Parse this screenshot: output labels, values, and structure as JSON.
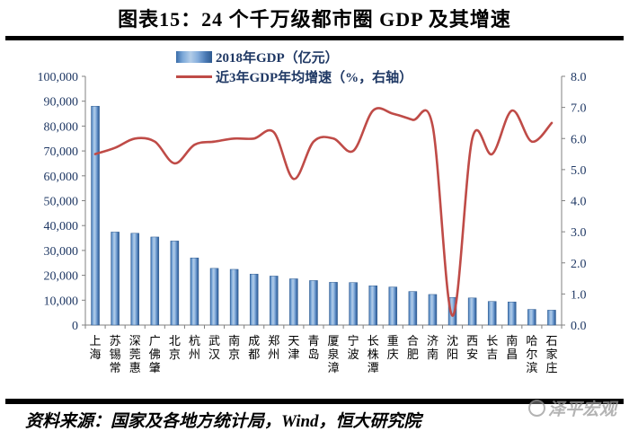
{
  "title": "图表15：24 个千万级都市圈 GDP 及其增速",
  "source_line": "资料来源：国家及各地方统计局，Wind，恒大研究院",
  "watermark": "泽平宏观",
  "legend": {
    "bar_label": "2018年GDP（亿元）",
    "line_label": "近3年GDP年均增速（%，右轴）"
  },
  "colors": {
    "line": "#bf4b47",
    "bar_edge": "#2e5a8f",
    "bar_light": "#b3cde8",
    "bar_mid": "#4f81bd",
    "axis": "#808080",
    "axis_text": "#1f3864",
    "category_text": "#000000"
  },
  "chart_data": {
    "type": "bar",
    "title": "图表15：24 个千万级都市圈 GDP 及其增速",
    "categories": [
      "上海",
      "苏锡常",
      "深莞惠",
      "广佛肇",
      "北京",
      "杭州",
      "武汉",
      "南京",
      "成都",
      "郑州",
      "天津",
      "青岛",
      "厦泉漳",
      "宁波",
      "长株潭",
      "重庆",
      "合肥",
      "济南",
      "沈阳",
      "西安",
      "长吉",
      "南昌",
      "哈尔滨",
      "石家庄"
    ],
    "series": [
      {
        "name": "2018年GDP（亿元）",
        "type": "bar",
        "axis": "left",
        "values": [
          88000,
          37400,
          36900,
          35400,
          33800,
          27000,
          22800,
          22400,
          20500,
          19700,
          18600,
          17900,
          17200,
          17100,
          15800,
          15300,
          13500,
          12300,
          11100,
          10900,
          9500,
          9300,
          6300,
          6000
        ]
      },
      {
        "name": "近3年GDP年均增速（%，右轴）",
        "type": "line",
        "axis": "right",
        "values": [
          5.5,
          5.7,
          6.0,
          5.9,
          5.2,
          5.8,
          5.9,
          6.0,
          6.0,
          6.2,
          4.7,
          5.9,
          6.0,
          5.6,
          6.9,
          6.8,
          6.6,
          6.4,
          0.3,
          6.0,
          5.5,
          6.9,
          5.9,
          6.5
        ]
      }
    ],
    "left_axis": {
      "min": 0,
      "max": 100000,
      "step": 10000,
      "labels": [
        "0",
        "10,000",
        "20,000",
        "30,000",
        "40,000",
        "50,000",
        "60,000",
        "70,000",
        "80,000",
        "90,000",
        "100,000"
      ]
    },
    "right_axis": {
      "min": 0,
      "max": 8,
      "step": 1,
      "labels": [
        "0.0",
        "1.0",
        "2.0",
        "3.0",
        "4.0",
        "5.0",
        "6.0",
        "7.0",
        "8.0"
      ]
    },
    "grid": false,
    "legend_position": "top-center"
  }
}
